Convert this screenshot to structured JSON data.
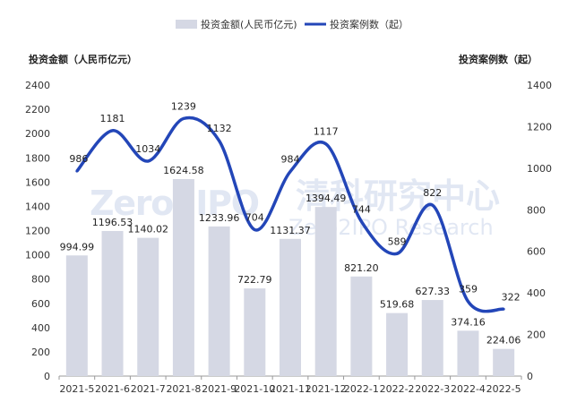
{
  "legend": {
    "bar_series": "投资金额(人民币亿元)",
    "line_series": "投资案例数（起）"
  },
  "watermark": {
    "logo_text": "Zero2IPO",
    "cn_text": "清科研究中心",
    "en_text": "Zero2IPO Research"
  },
  "colors": {
    "bar": "#d5d8e4",
    "line": "#2346b8"
  },
  "chart_data": {
    "type": "bar",
    "categories": [
      "2021-5",
      "2021-6",
      "2021-7",
      "2021-8",
      "2021-9",
      "2021-10",
      "2021-11",
      "2021-12",
      "2022-1",
      "2022-2",
      "2022-3",
      "2022-4",
      "2022-5"
    ],
    "series": [
      {
        "name": "投资金额(人民币亿元)",
        "type": "bar",
        "axis": "left",
        "values": [
          994.99,
          1196.53,
          1140.02,
          1624.58,
          1233.96,
          722.79,
          1131.37,
          1394.49,
          821.2,
          519.68,
          627.33,
          374.16,
          224.06
        ],
        "labels": [
          "994.99",
          "1196.53",
          "1140.02",
          "1624.58",
          "1233.96",
          "722.79",
          "1131.37",
          "1394.49",
          "821.20",
          "519.68",
          "627.33",
          "374.16",
          "224.06"
        ]
      },
      {
        "name": "投资案例数（起）",
        "type": "line",
        "axis": "right",
        "values": [
          986,
          1181,
          1034,
          1239,
          1132,
          704,
          984,
          1117,
          744,
          589,
          822,
          359,
          322
        ],
        "labels": [
          "986",
          "1181",
          "1034",
          "1239",
          "1132",
          "704",
          "984",
          "1117",
          "744",
          "589",
          "822",
          "359",
          "322"
        ]
      }
    ],
    "ylabel_left": "投资金额（人民币亿元）",
    "ylabel_right": "投资案例数（起）",
    "ylim_left": [
      0,
      2400
    ],
    "ylim_right": [
      0,
      1400
    ],
    "yticks_left": [
      "0",
      "200",
      "400",
      "600",
      "800",
      "1000",
      "1200",
      "1400",
      "1600",
      "1800",
      "2000",
      "2200",
      "2400"
    ],
    "yticks_right": [
      "0",
      "200",
      "400",
      "600",
      "800",
      "1000",
      "1200",
      "1400"
    ],
    "grid": false,
    "legend_position": "top"
  }
}
